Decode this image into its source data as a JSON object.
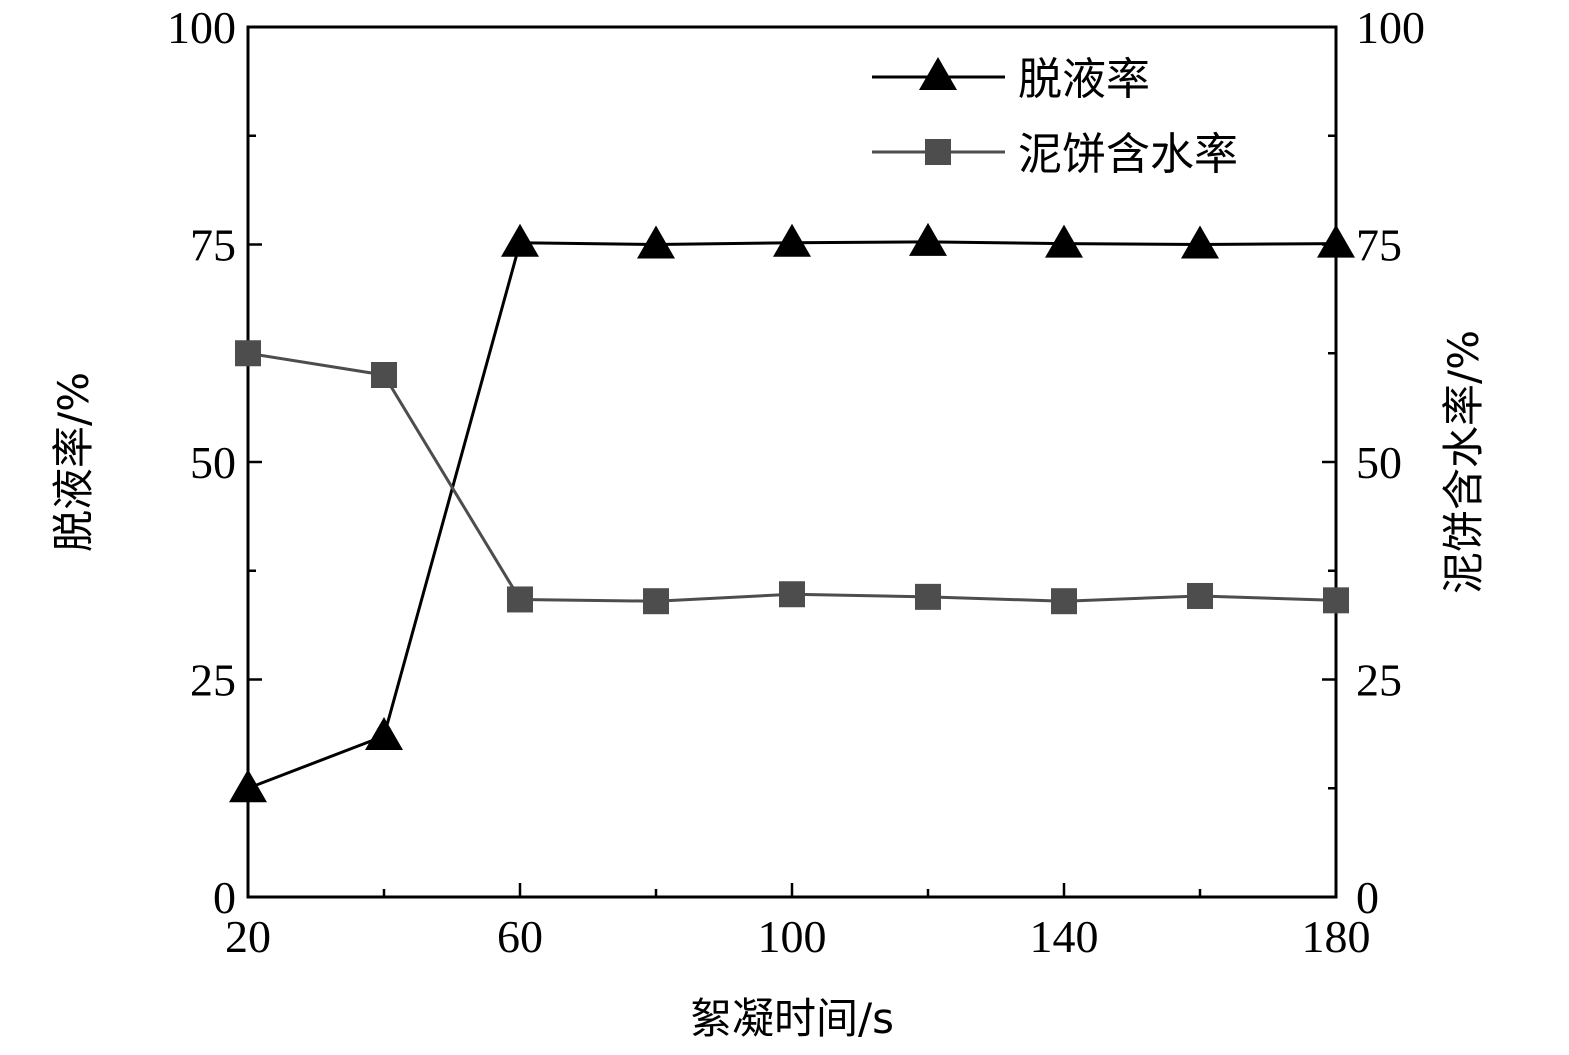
{
  "chart_data": {
    "type": "line",
    "xlabel": "絮凝时间/s",
    "ylabel_left": "脱液率/%",
    "ylabel_right": "泥饼含水率/%",
    "x": [
      20,
      40,
      60,
      80,
      100,
      120,
      140,
      160,
      180
    ],
    "xlim": [
      20,
      180
    ],
    "xticks": [
      20,
      60,
      100,
      140,
      180
    ],
    "ylim_left": [
      0,
      100
    ],
    "ylim_right": [
      0,
      100
    ],
    "yticks_left": [
      0,
      25,
      50,
      75,
      100
    ],
    "yticks_right": [
      0,
      25,
      50,
      75,
      100
    ],
    "grid": false,
    "legend_position": "top-right",
    "series": [
      {
        "name": "脱液率",
        "axis": "left",
        "marker": "triangle",
        "color": "#000000",
        "values": [
          12.5,
          18.5,
          75.2,
          75.0,
          75.2,
          75.3,
          75.1,
          75.0,
          75.1
        ]
      },
      {
        "name": "泥饼含水率",
        "axis": "right",
        "marker": "square",
        "color": "#4d4d4d",
        "values": [
          62.5,
          60.0,
          34.2,
          34.0,
          34.8,
          34.5,
          34.0,
          34.6,
          34.1
        ]
      }
    ]
  }
}
